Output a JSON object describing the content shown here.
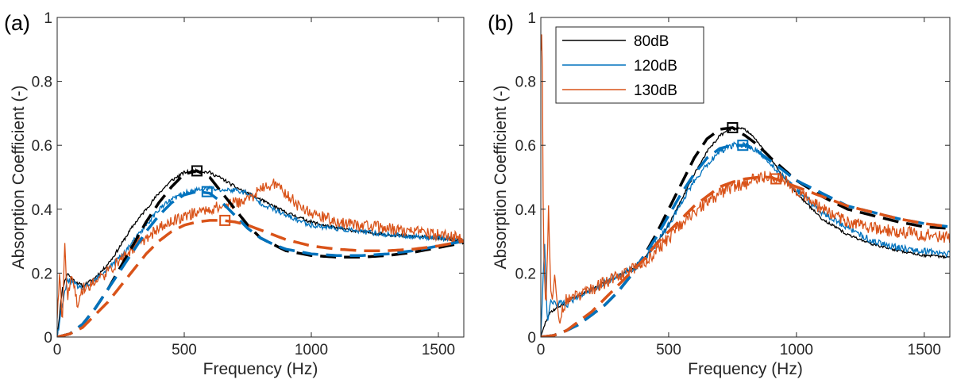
{
  "colors": {
    "c80": "#000000",
    "c120": "#0072BD",
    "c130": "#D95319"
  },
  "chart_data": [
    {
      "type": "line",
      "panel_label": "(a)",
      "xlabel": "Frequency (Hz)",
      "ylabel": "Absorption Coefficient (-)",
      "xlim": [
        0,
        1600
      ],
      "ylim": [
        0,
        1
      ],
      "xticks": [
        0,
        500,
        1000,
        1500
      ],
      "xtick_labels": [
        "0",
        "500",
        "1000",
        "1500"
      ],
      "yticks": [
        0,
        0.2,
        0.4,
        0.6,
        0.8,
        1
      ],
      "ytick_labels": [
        "0",
        "0.2",
        "0.4",
        "0.6",
        "0.8",
        "1"
      ],
      "noise_seed": 11,
      "series": [
        {
          "name": "80dB",
          "kind": "measured",
          "color_key": "c80",
          "noise": 0.005,
          "x": [
            0,
            20,
            40,
            60,
            80,
            100,
            140,
            180,
            220,
            260,
            300,
            350,
            400,
            450,
            500,
            550,
            600,
            650,
            700,
            750,
            800,
            850,
            900,
            1000,
            1100,
            1200,
            1300,
            1400,
            1500,
            1600
          ],
          "y": [
            0.0,
            0.15,
            0.2,
            0.18,
            0.17,
            0.16,
            0.18,
            0.21,
            0.25,
            0.3,
            0.35,
            0.4,
            0.45,
            0.49,
            0.515,
            0.52,
            0.515,
            0.495,
            0.47,
            0.45,
            0.43,
            0.41,
            0.39,
            0.36,
            0.34,
            0.33,
            0.32,
            0.315,
            0.31,
            0.3
          ]
        },
        {
          "name": "120dB",
          "kind": "measured",
          "color_key": "c120",
          "noise": 0.008,
          "x": [
            0,
            20,
            40,
            60,
            80,
            100,
            140,
            180,
            220,
            260,
            300,
            350,
            400,
            450,
            500,
            550,
            600,
            650,
            700,
            750,
            800,
            850,
            900,
            1000,
            1100,
            1200,
            1300,
            1400,
            1500,
            1600
          ],
          "y": [
            0.0,
            0.1,
            0.18,
            0.17,
            0.16,
            0.15,
            0.17,
            0.2,
            0.23,
            0.26,
            0.3,
            0.35,
            0.4,
            0.43,
            0.45,
            0.46,
            0.465,
            0.46,
            0.46,
            0.45,
            0.42,
            0.4,
            0.38,
            0.35,
            0.34,
            0.33,
            0.32,
            0.315,
            0.31,
            0.3
          ]
        },
        {
          "name": "130dB",
          "kind": "measured",
          "color_key": "c130",
          "noise": 0.018,
          "x": [
            0,
            10,
            20,
            30,
            40,
            60,
            80,
            100,
            140,
            180,
            220,
            260,
            300,
            350,
            400,
            450,
            500,
            550,
            600,
            650,
            700,
            750,
            800,
            850,
            900,
            950,
            1000,
            1100,
            1200,
            1300,
            1400,
            1500,
            1600
          ],
          "y": [
            0.05,
            0.2,
            0.05,
            0.3,
            0.12,
            0.2,
            0.1,
            0.15,
            0.17,
            0.19,
            0.22,
            0.25,
            0.28,
            0.31,
            0.34,
            0.36,
            0.38,
            0.39,
            0.4,
            0.41,
            0.42,
            0.43,
            0.46,
            0.48,
            0.45,
            0.41,
            0.39,
            0.36,
            0.35,
            0.34,
            0.33,
            0.32,
            0.31
          ]
        },
        {
          "name": "80dB model",
          "kind": "model",
          "color_key": "c80",
          "x": [
            0,
            50,
            100,
            150,
            200,
            250,
            300,
            350,
            400,
            450,
            500,
            550,
            600,
            650,
            700,
            750,
            800,
            850,
            900,
            1000,
            1100,
            1200,
            1300,
            1400,
            1500,
            1600
          ],
          "y": [
            0.0,
            0.01,
            0.04,
            0.09,
            0.15,
            0.22,
            0.29,
            0.36,
            0.42,
            0.47,
            0.51,
            0.52,
            0.5,
            0.45,
            0.4,
            0.35,
            0.31,
            0.29,
            0.27,
            0.255,
            0.25,
            0.25,
            0.255,
            0.265,
            0.28,
            0.295
          ]
        },
        {
          "name": "120dB model",
          "kind": "model",
          "color_key": "c120",
          "x": [
            0,
            50,
            100,
            150,
            200,
            250,
            300,
            350,
            400,
            450,
            500,
            550,
            600,
            650,
            700,
            750,
            800,
            850,
            900,
            1000,
            1100,
            1200,
            1300,
            1400,
            1500,
            1600
          ],
          "y": [
            0.0,
            0.01,
            0.04,
            0.09,
            0.15,
            0.21,
            0.27,
            0.33,
            0.38,
            0.42,
            0.445,
            0.455,
            0.45,
            0.42,
            0.38,
            0.34,
            0.31,
            0.29,
            0.275,
            0.26,
            0.255,
            0.255,
            0.26,
            0.27,
            0.285,
            0.3
          ]
        },
        {
          "name": "130dB model",
          "kind": "model",
          "color_key": "c130",
          "x": [
            0,
            50,
            100,
            150,
            200,
            250,
            300,
            350,
            400,
            450,
            500,
            550,
            600,
            650,
            700,
            750,
            800,
            850,
            900,
            1000,
            1100,
            1200,
            1300,
            1400,
            1500,
            1600
          ],
          "y": [
            0.0,
            0.01,
            0.03,
            0.07,
            0.11,
            0.16,
            0.21,
            0.26,
            0.3,
            0.33,
            0.35,
            0.36,
            0.365,
            0.365,
            0.36,
            0.35,
            0.335,
            0.32,
            0.305,
            0.285,
            0.275,
            0.27,
            0.27,
            0.275,
            0.285,
            0.3
          ]
        }
      ],
      "markers": [
        {
          "series": "80dB",
          "color_key": "c80",
          "x": 550,
          "y": 0.52
        },
        {
          "series": "120dB",
          "color_key": "c120",
          "x": 590,
          "y": 0.455
        },
        {
          "series": "130dB",
          "color_key": "c130",
          "x": 660,
          "y": 0.365
        }
      ]
    },
    {
      "type": "line",
      "panel_label": "(b)",
      "xlabel": "Frequency (Hz)",
      "ylabel": "Absorption Coefficient (-)",
      "xlim": [
        0,
        1600
      ],
      "ylim": [
        0,
        1
      ],
      "xticks": [
        0,
        500,
        1000,
        1500
      ],
      "xtick_labels": [
        "0",
        "500",
        "1000",
        "1500"
      ],
      "yticks": [
        0,
        0.2,
        0.4,
        0.6,
        0.8,
        1
      ],
      "ytick_labels": [
        "0",
        "0.2",
        "0.4",
        "0.6",
        "0.8",
        "1"
      ],
      "legend": {
        "location": "top-left",
        "entries": [
          "80dB",
          "120dB",
          "130dB"
        ]
      },
      "noise_seed": 29,
      "series": [
        {
          "name": "80dB",
          "kind": "measured",
          "color_key": "c80",
          "noise": 0.004,
          "x": [
            0,
            20,
            40,
            60,
            80,
            100,
            150,
            200,
            250,
            300,
            350,
            400,
            450,
            500,
            550,
            600,
            650,
            700,
            750,
            800,
            850,
            900,
            950,
            1000,
            1100,
            1200,
            1300,
            1400,
            1500,
            1600
          ],
          "y": [
            0.0,
            0.05,
            0.08,
            0.09,
            0.1,
            0.11,
            0.13,
            0.15,
            0.17,
            0.19,
            0.21,
            0.24,
            0.29,
            0.35,
            0.43,
            0.51,
            0.58,
            0.63,
            0.655,
            0.65,
            0.61,
            0.56,
            0.5,
            0.45,
            0.37,
            0.32,
            0.29,
            0.27,
            0.255,
            0.25
          ]
        },
        {
          "name": "120dB",
          "kind": "measured",
          "color_key": "c120",
          "noise": 0.01,
          "x": [
            0,
            15,
            25,
            40,
            60,
            80,
            100,
            150,
            200,
            250,
            300,
            350,
            400,
            450,
            500,
            550,
            600,
            650,
            700,
            750,
            800,
            850,
            900,
            950,
            1000,
            1100,
            1200,
            1300,
            1400,
            1500,
            1600
          ],
          "y": [
            0.0,
            0.3,
            0.05,
            0.12,
            0.1,
            0.11,
            0.1,
            0.13,
            0.15,
            0.17,
            0.19,
            0.21,
            0.24,
            0.29,
            0.35,
            0.42,
            0.49,
            0.54,
            0.58,
            0.6,
            0.6,
            0.58,
            0.54,
            0.5,
            0.46,
            0.39,
            0.34,
            0.3,
            0.28,
            0.27,
            0.26
          ]
        },
        {
          "name": "130dB",
          "kind": "measured",
          "color_key": "c130",
          "noise": 0.02,
          "x": [
            0,
            5,
            10,
            20,
            30,
            40,
            55,
            70,
            100,
            150,
            200,
            250,
            300,
            350,
            400,
            450,
            500,
            550,
            600,
            650,
            700,
            750,
            800,
            850,
            900,
            950,
            1000,
            1100,
            1200,
            1300,
            1400,
            1500,
            1600
          ],
          "y": [
            0.9,
            1.0,
            0.3,
            0.08,
            0.4,
            0.1,
            0.2,
            0.05,
            0.12,
            0.13,
            0.15,
            0.17,
            0.19,
            0.21,
            0.23,
            0.27,
            0.31,
            0.35,
            0.39,
            0.42,
            0.45,
            0.47,
            0.48,
            0.5,
            0.5,
            0.49,
            0.46,
            0.4,
            0.36,
            0.34,
            0.33,
            0.32,
            0.31
          ]
        },
        {
          "name": "80dB model",
          "kind": "model",
          "color_key": "c80",
          "x": [
            0,
            50,
            100,
            150,
            200,
            250,
            300,
            350,
            400,
            450,
            500,
            550,
            600,
            650,
            700,
            750,
            800,
            850,
            900,
            1000,
            1100,
            1200,
            1300,
            1400,
            1500,
            1600
          ],
          "y": [
            0.0,
            0.005,
            0.02,
            0.04,
            0.07,
            0.1,
            0.14,
            0.19,
            0.25,
            0.32,
            0.4,
            0.48,
            0.56,
            0.62,
            0.65,
            0.655,
            0.63,
            0.6,
            0.56,
            0.49,
            0.44,
            0.4,
            0.38,
            0.36,
            0.345,
            0.34
          ]
        },
        {
          "name": "120dB model",
          "kind": "model",
          "color_key": "c120",
          "x": [
            0,
            50,
            100,
            150,
            200,
            250,
            300,
            350,
            400,
            450,
            500,
            550,
            600,
            650,
            700,
            750,
            800,
            850,
            900,
            1000,
            1100,
            1200,
            1300,
            1400,
            1500,
            1600
          ],
          "y": [
            0.0,
            0.005,
            0.02,
            0.04,
            0.07,
            0.1,
            0.14,
            0.19,
            0.25,
            0.31,
            0.38,
            0.45,
            0.51,
            0.56,
            0.59,
            0.6,
            0.6,
            0.58,
            0.55,
            0.49,
            0.45,
            0.41,
            0.39,
            0.37,
            0.355,
            0.345
          ]
        },
        {
          "name": "130dB model",
          "kind": "model",
          "color_key": "c130",
          "x": [
            0,
            50,
            100,
            150,
            200,
            250,
            300,
            350,
            400,
            450,
            500,
            550,
            600,
            650,
            700,
            750,
            800,
            850,
            900,
            1000,
            1100,
            1200,
            1300,
            1400,
            1500,
            1600
          ],
          "y": [
            0.0,
            0.005,
            0.02,
            0.05,
            0.08,
            0.12,
            0.16,
            0.2,
            0.24,
            0.29,
            0.33,
            0.37,
            0.41,
            0.44,
            0.47,
            0.485,
            0.495,
            0.5,
            0.5,
            0.47,
            0.44,
            0.41,
            0.39,
            0.37,
            0.355,
            0.345
          ]
        }
      ],
      "markers": [
        {
          "series": "80dB",
          "color_key": "c80",
          "x": 750,
          "y": 0.655
        },
        {
          "series": "120dB",
          "color_key": "c120",
          "x": 790,
          "y": 0.6
        },
        {
          "series": "130dB",
          "color_key": "c130",
          "x": 920,
          "y": 0.495
        }
      ]
    }
  ]
}
